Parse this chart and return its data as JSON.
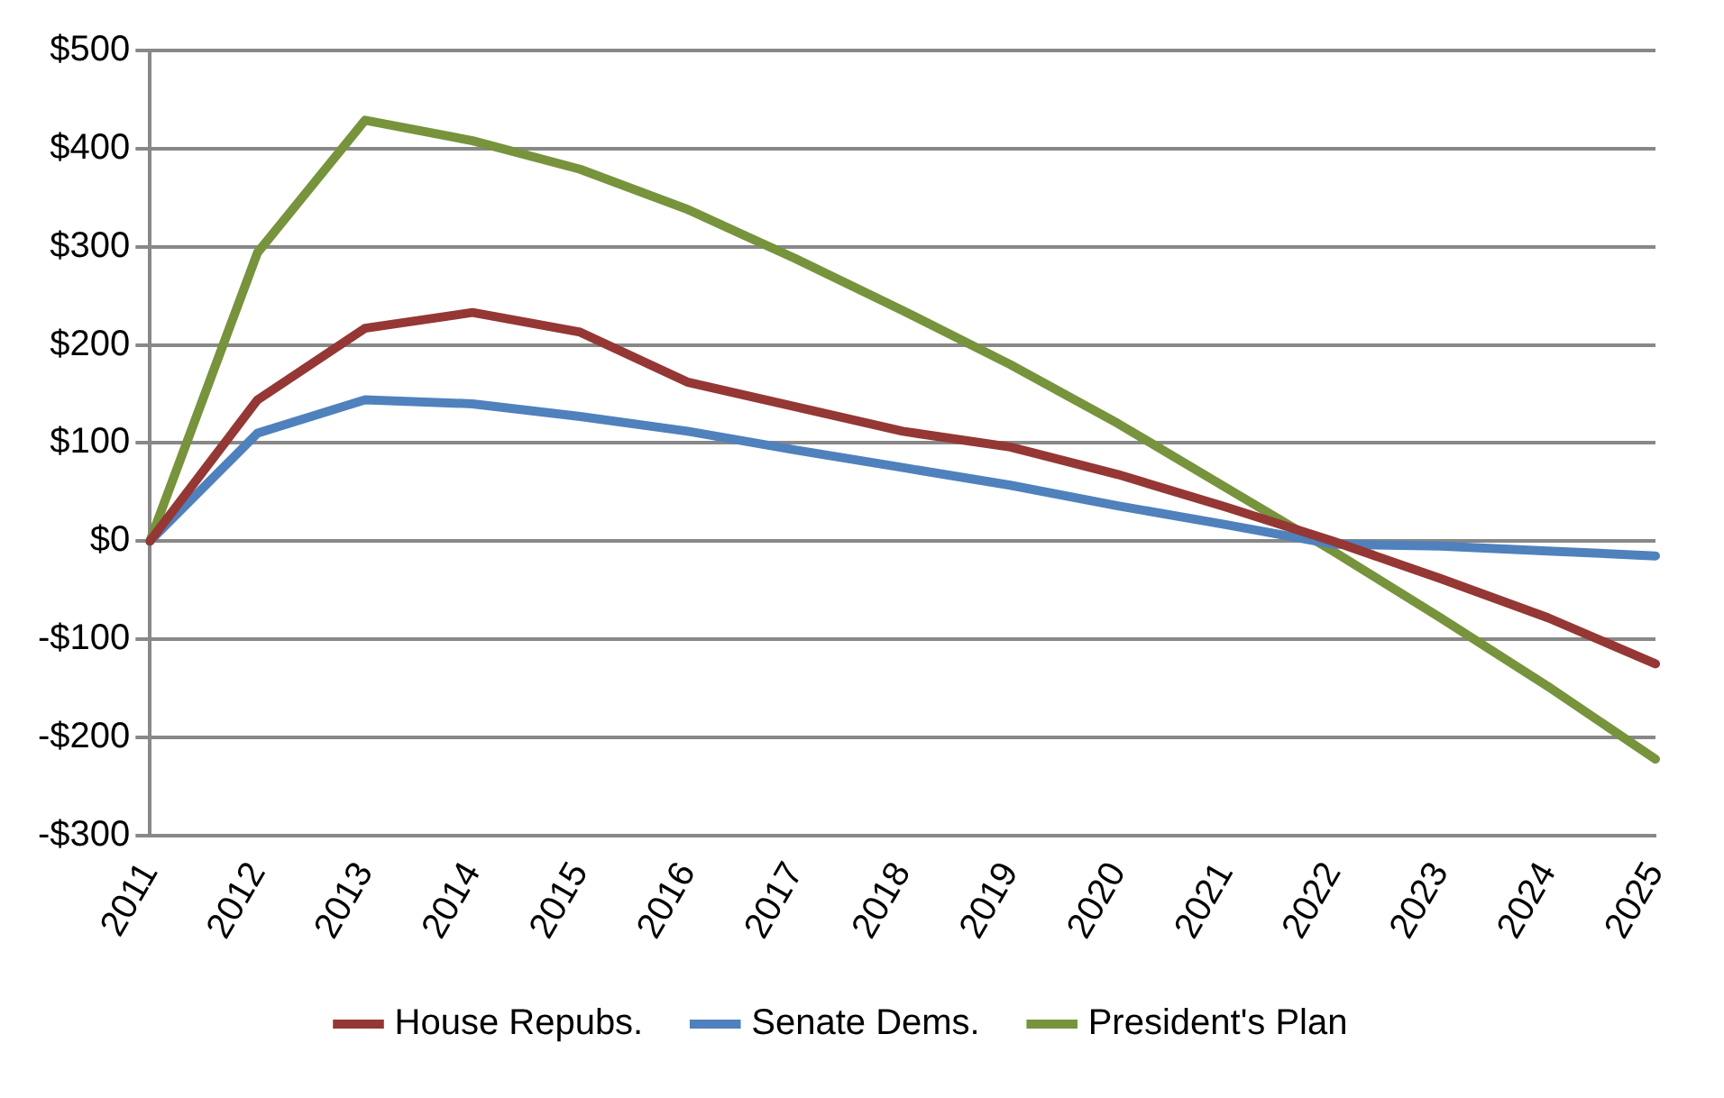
{
  "chart_data": {
    "type": "line",
    "categories": [
      "2011",
      "2012",
      "2013",
      "2014",
      "2015",
      "2016",
      "2017",
      "2018",
      "2019",
      "2020",
      "2021",
      "2022",
      "2023",
      "2024",
      "2025"
    ],
    "series": [
      {
        "name": "House Repubs.",
        "color": "#953735",
        "values": [
          0,
          144,
          217,
          233,
          213,
          162,
          137,
          112,
          96,
          68,
          35,
          0,
          -38,
          -78,
          -125
        ]
      },
      {
        "name": "Senate Dems.",
        "color": "#4f81bd",
        "values": [
          0,
          110,
          144,
          140,
          127,
          112,
          93,
          75,
          57,
          36,
          17,
          -3,
          -5,
          -10,
          -15
        ]
      },
      {
        "name": "President's Plan",
        "color": "#77933c",
        "values": [
          0,
          294,
          429,
          408,
          379,
          338,
          288,
          235,
          180,
          120,
          55,
          -10,
          -78,
          -148,
          -222
        ]
      }
    ],
    "ylim": [
      -300,
      500
    ],
    "yticks": [
      {
        "value": -300,
        "label": "-$300"
      },
      {
        "value": -200,
        "label": "-$200"
      },
      {
        "value": -100,
        "label": "-$100"
      },
      {
        "value": 0,
        "label": "$0"
      },
      {
        "value": 100,
        "label": "$100"
      },
      {
        "value": 200,
        "label": "$200"
      },
      {
        "value": 300,
        "label": "$300"
      },
      {
        "value": 400,
        "label": "$400"
      },
      {
        "value": 500,
        "label": "$500"
      }
    ],
    "grid": "y",
    "legend": "bottom",
    "marker": "none",
    "line_style": "solid"
  }
}
